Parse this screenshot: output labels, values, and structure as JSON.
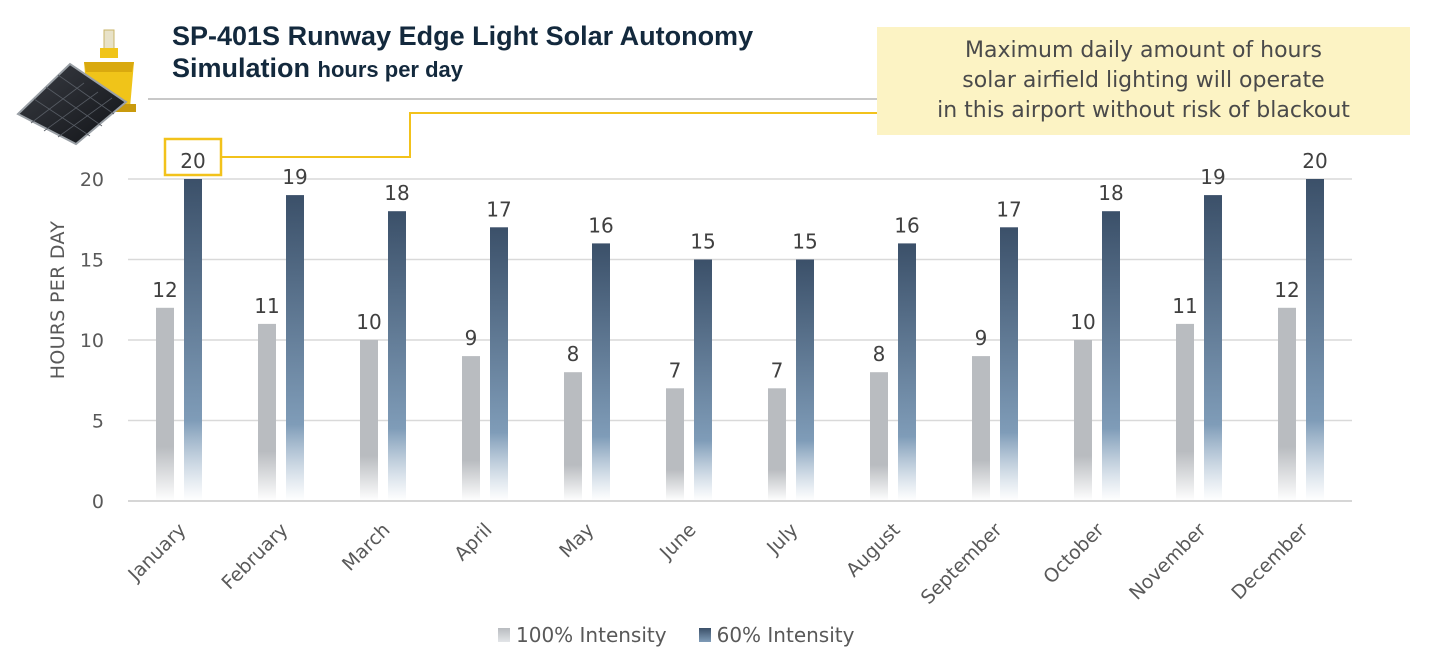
{
  "title": {
    "line1": "SP-401S Runway Edge Light Solar Autonomy",
    "line2": "Simulation",
    "line2_unit": "hours per day"
  },
  "callout": {
    "lines": [
      "Maximum daily amount of hours",
      "solar airfield lighting will operate",
      "in this airport without risk of blackout"
    ]
  },
  "colors": {
    "series_100": "#b9bcc0",
    "series_60": "#3b5069",
    "highlight": "#f2c21b",
    "grid": "#d9d9d9"
  },
  "product_image": {
    "icon": "solar-runway-light-icon"
  },
  "chart_data": {
    "type": "bar",
    "ylabel": "HOURS PER DAY",
    "xlabel": "",
    "ylim": [
      0,
      20
    ],
    "yticks": [
      0,
      5,
      10,
      15,
      20
    ],
    "grid": true,
    "legend_position": "bottom",
    "categories": [
      "January",
      "February",
      "March",
      "April",
      "May",
      "June",
      "July",
      "August",
      "September",
      "October",
      "November",
      "December"
    ],
    "series": [
      {
        "name": "100% Intensity",
        "values": [
          12,
          11,
          10,
          9,
          8,
          7,
          7,
          8,
          9,
          10,
          11,
          12
        ]
      },
      {
        "name": "60% Intensity",
        "values": [
          20,
          19,
          18,
          17,
          16,
          15,
          15,
          16,
          17,
          18,
          19,
          20
        ]
      }
    ],
    "highlighted_label": {
      "series": 1,
      "index": 0
    }
  }
}
